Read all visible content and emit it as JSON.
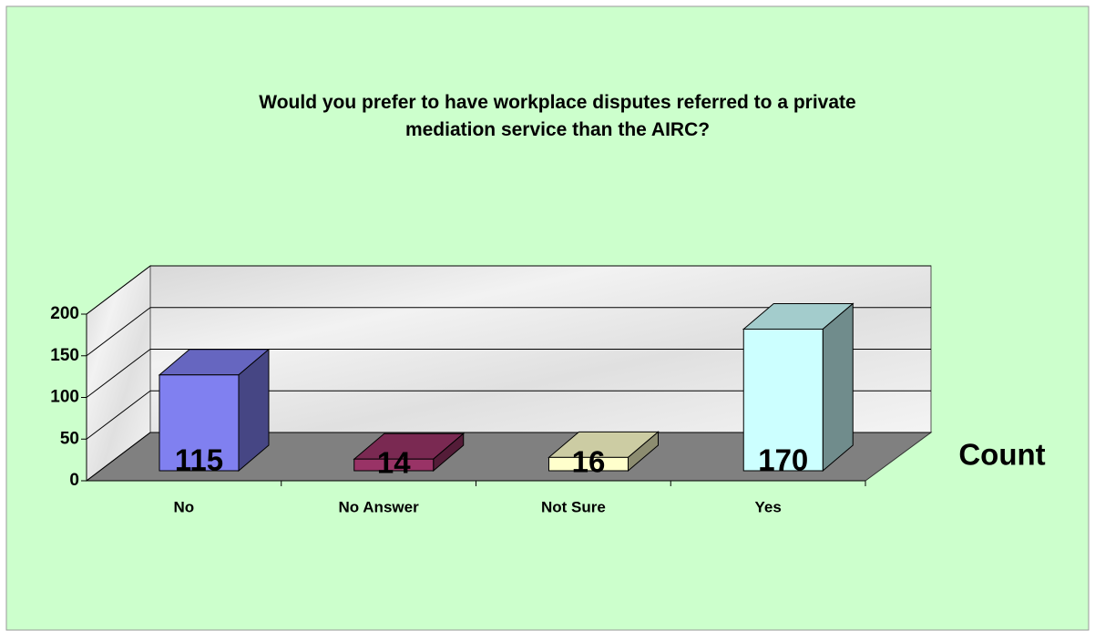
{
  "chart_data": {
    "type": "bar3d",
    "title": "Would you prefer to have workplace disputes referred to a private mediation service than the AIRC?",
    "categories": [
      "No",
      "No Answer",
      "Not Sure",
      "Yes"
    ],
    "series": [
      {
        "name": "Count",
        "values": [
          115,
          14,
          16,
          170
        ],
        "colors": [
          "#8080f0",
          "#993366",
          "#ffffcc",
          "#ccffff"
        ]
      }
    ],
    "ylim": [
      0,
      200
    ],
    "yticks": [
      0,
      50,
      100,
      150,
      200
    ],
    "grid": true,
    "legend": "right"
  }
}
